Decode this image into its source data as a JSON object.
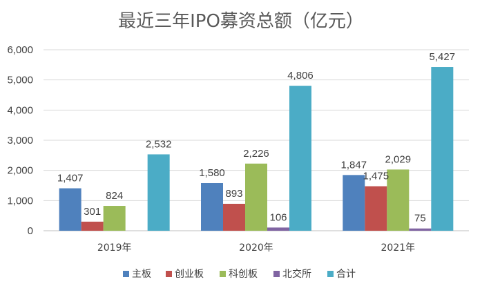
{
  "chart_data": {
    "type": "bar",
    "title": "最近三年IPO募资总额（亿元）",
    "categories": [
      "2019年",
      "2020年",
      "2021年"
    ],
    "series": [
      {
        "name": "主板",
        "color": "#4F81BD",
        "values": [
          1407,
          1580,
          1847
        ]
      },
      {
        "name": "创业板",
        "color": "#C0504D",
        "values": [
          301,
          893,
          1475
        ]
      },
      {
        "name": "科创板",
        "color": "#9BBB59",
        "values": [
          824,
          2226,
          2029
        ]
      },
      {
        "name": "北交所",
        "color": "#8064A2",
        "values": [
          null,
          106,
          75
        ]
      },
      {
        "name": "合计",
        "color": "#4BACC6",
        "values": [
          2532,
          4806,
          5427
        ]
      }
    ],
    "data_labels": [
      [
        "1,407",
        "1,580",
        "1,847"
      ],
      [
        "301",
        "893",
        "1,475"
      ],
      [
        "824",
        "2,226",
        "2,029"
      ],
      [
        "",
        "106",
        "75"
      ],
      [
        "2,532",
        "4,806",
        "5,427"
      ]
    ],
    "ylim": [
      0,
      6000
    ],
    "yticks": [
      0,
      1000,
      2000,
      3000,
      4000,
      5000,
      6000
    ],
    "ytick_labels": [
      "0",
      "1,000",
      "2,000",
      "3,000",
      "4,000",
      "5,000",
      "6,000"
    ],
    "grid": true,
    "legend_position": "bottom"
  }
}
